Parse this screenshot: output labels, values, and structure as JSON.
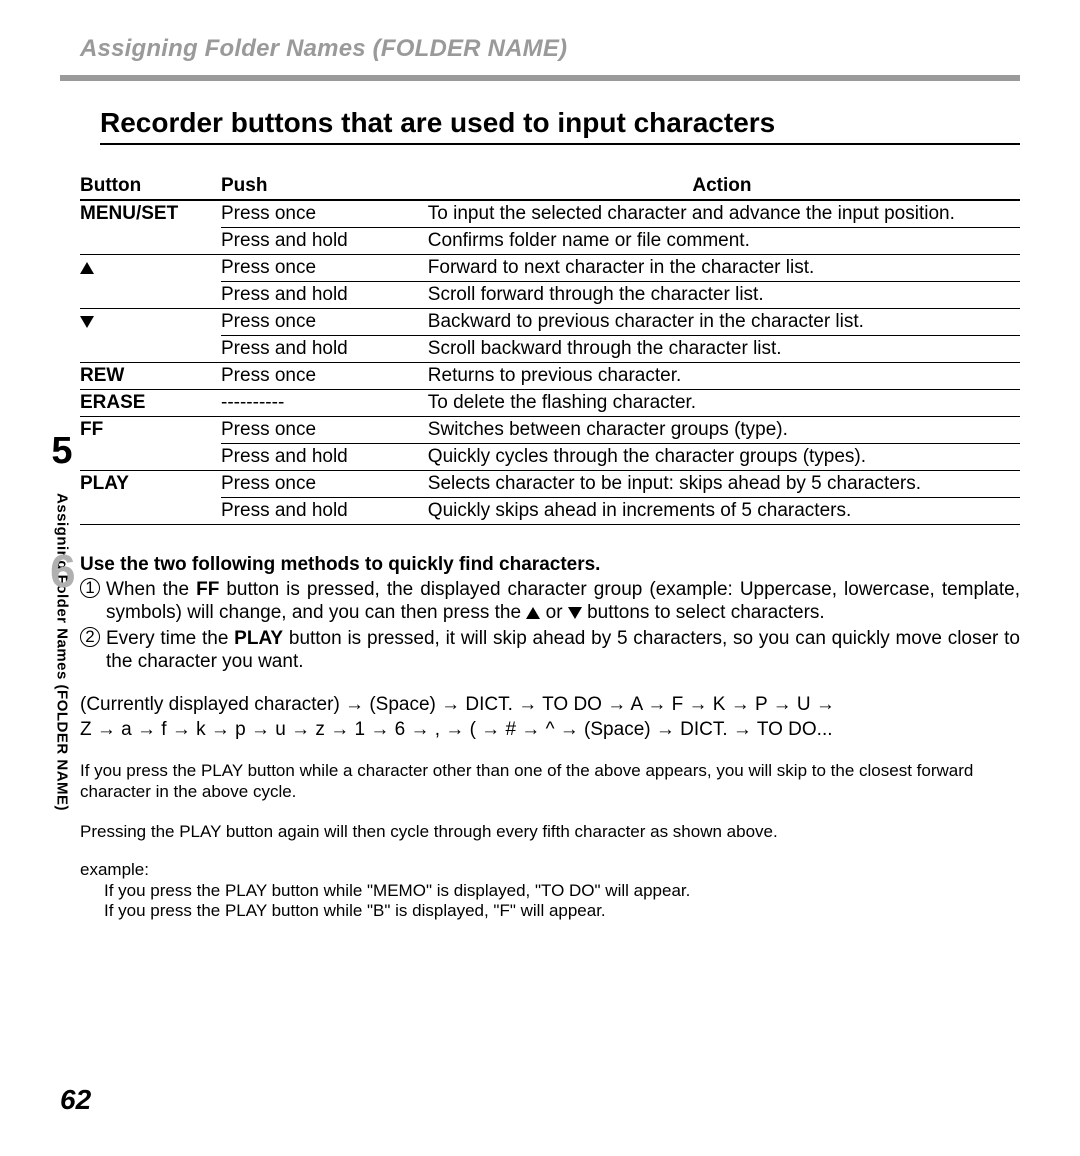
{
  "breadcrumb": "Assigning Folder Names (FOLDER NAME)",
  "main_title": "Recorder buttons that are used to input characters",
  "sidebar": {
    "chapter": "5",
    "vlabel": "Assigning Folder Names (FOLDER NAME)"
  },
  "table": {
    "headers": [
      "Button",
      "Push",
      "Action"
    ],
    "rows": [
      {
        "button": "MENU/SET",
        "push": "Press once",
        "action": "To input the selected character and advance the input position.",
        "group_end": false
      },
      {
        "button": "",
        "push": "Press and hold",
        "action": "Confirms folder name or file comment.",
        "group_end": true
      },
      {
        "button": "▲",
        "push": "Press once",
        "action": "Forward to next character in the character list.",
        "group_end": false,
        "icon": "triangle-up-icon"
      },
      {
        "button": "",
        "push": "Press and hold",
        "action": "Scroll forward through the character list.",
        "group_end": true
      },
      {
        "button": "▼",
        "push": "Press once",
        "action": "Backward to previous character in the character list.",
        "group_end": false,
        "icon": "triangle-down-icon"
      },
      {
        "button": "",
        "push": "Press and hold",
        "action": "Scroll backward through the character list.",
        "group_end": true
      },
      {
        "button": "REW",
        "push": "Press once",
        "action": "Returns to previous character.",
        "group_end": true
      },
      {
        "button": "ERASE",
        "push": "----------",
        "action": "To delete the flashing character.",
        "group_end": true
      },
      {
        "button": "FF",
        "push": "Press once",
        "action": "Switches between character groups (type).",
        "group_end": false
      },
      {
        "button": "",
        "push": "Press and hold",
        "action": "Quickly cycles through the character groups (types).",
        "group_end": true
      },
      {
        "button": "PLAY",
        "push": "Press once",
        "action": "Selects character to be input: skips ahead by 5 characters.",
        "group_end": false
      },
      {
        "button": "",
        "push": "Press and hold",
        "action": "Quickly skips ahead in increments of 5 characters.",
        "group_end": true
      }
    ]
  },
  "step": {
    "number": "6",
    "title": "Use the two following methods to quickly find characters.",
    "items": [
      {
        "num": "1",
        "pre": "When the ",
        "bold1": "FF",
        "mid": " button is pressed, the displayed character group (example: Uppercase, lowercase, template, symbols) will change, and you can then press the ",
        "post": " buttons to select characters."
      },
      {
        "num": "2",
        "pre": "Every time the ",
        "bold1": "PLAY",
        "mid": " button is pressed, it will skip ahead by 5 characters, so you can quickly move closer to the character you want.",
        "post": ""
      }
    ]
  },
  "sequence": {
    "lead": "(Currently displayed character)",
    "items1": [
      "(Space)",
      "DICT.",
      "TO DO",
      "A",
      "F",
      "K",
      "P",
      "U"
    ],
    "items2": [
      "Z",
      "a",
      "f",
      "k",
      "p",
      "u",
      "z",
      "1",
      "6",
      ",",
      "(",
      "#",
      "^",
      "(Space)",
      "DICT.",
      "TO DO..."
    ]
  },
  "notes": [
    "If you press the PLAY button while a character other than one of the above appears, you will skip to the closest forward character in the above cycle.",
    "Pressing the PLAY button again will then cycle through every fifth character as shown above."
  ],
  "example": {
    "label": "example:",
    "lines": [
      "If you press the PLAY button while \"MEMO\" is displayed, \"TO DO\" will appear.",
      "If you press the PLAY button while \"B\" is displayed, \"F\" will appear."
    ]
  },
  "page_number": "62",
  "glyphs": {
    "arrow": "→",
    "or": " or "
  }
}
